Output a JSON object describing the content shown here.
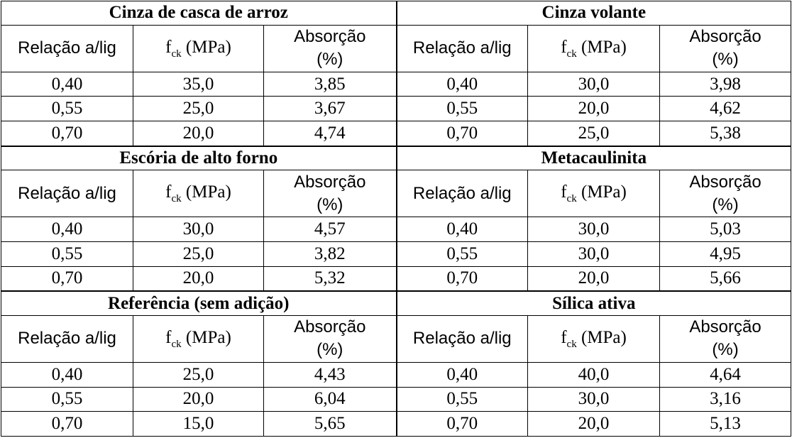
{
  "headers": {
    "ratio": "Relação a/lig",
    "fck_main": "f",
    "fck_sub": "ck",
    "fck_unit": " (MPa)",
    "abs_line1": "Absorção",
    "abs_line2": "(%)"
  },
  "groups": [
    {
      "left": {
        "title": "Cinza de casca de arroz",
        "rows": [
          [
            "0,40",
            "35,0",
            "3,85"
          ],
          [
            "0,55",
            "25,0",
            "3,67"
          ],
          [
            "0,70",
            "20,0",
            "4,74"
          ]
        ]
      },
      "right": {
        "title": "Cinza volante",
        "rows": [
          [
            "0,40",
            "30,0",
            "3,98"
          ],
          [
            "0,55",
            "20,0",
            "4,62"
          ],
          [
            "0,70",
            "25,0",
            "5,38"
          ]
        ]
      }
    },
    {
      "left": {
        "title": "Escória de alto forno",
        "rows": [
          [
            "0,40",
            "30,0",
            "4,57"
          ],
          [
            "0,55",
            "25,0",
            "3,82"
          ],
          [
            "0,70",
            "20,0",
            "5,32"
          ]
        ]
      },
      "right": {
        "title": "Metacaulinita",
        "rows": [
          [
            "0,40",
            "30,0",
            "5,03"
          ],
          [
            "0,55",
            "30,0",
            "4,95"
          ],
          [
            "0,70",
            "20,0",
            "5,66"
          ]
        ]
      }
    },
    {
      "left": {
        "title": "Referência (sem adição)",
        "rows": [
          [
            "0,40",
            "25,0",
            "4,43"
          ],
          [
            "0,55",
            "20,0",
            "6,04"
          ],
          [
            "0,70",
            "15,0",
            "5,65"
          ]
        ]
      },
      "right": {
        "title": "Sílica ativa",
        "rows": [
          [
            "0,40",
            "40,0",
            "4,64"
          ],
          [
            "0,55",
            "30,0",
            "3,16"
          ],
          [
            "0,70",
            "20,0",
            "5,13"
          ]
        ]
      }
    }
  ]
}
